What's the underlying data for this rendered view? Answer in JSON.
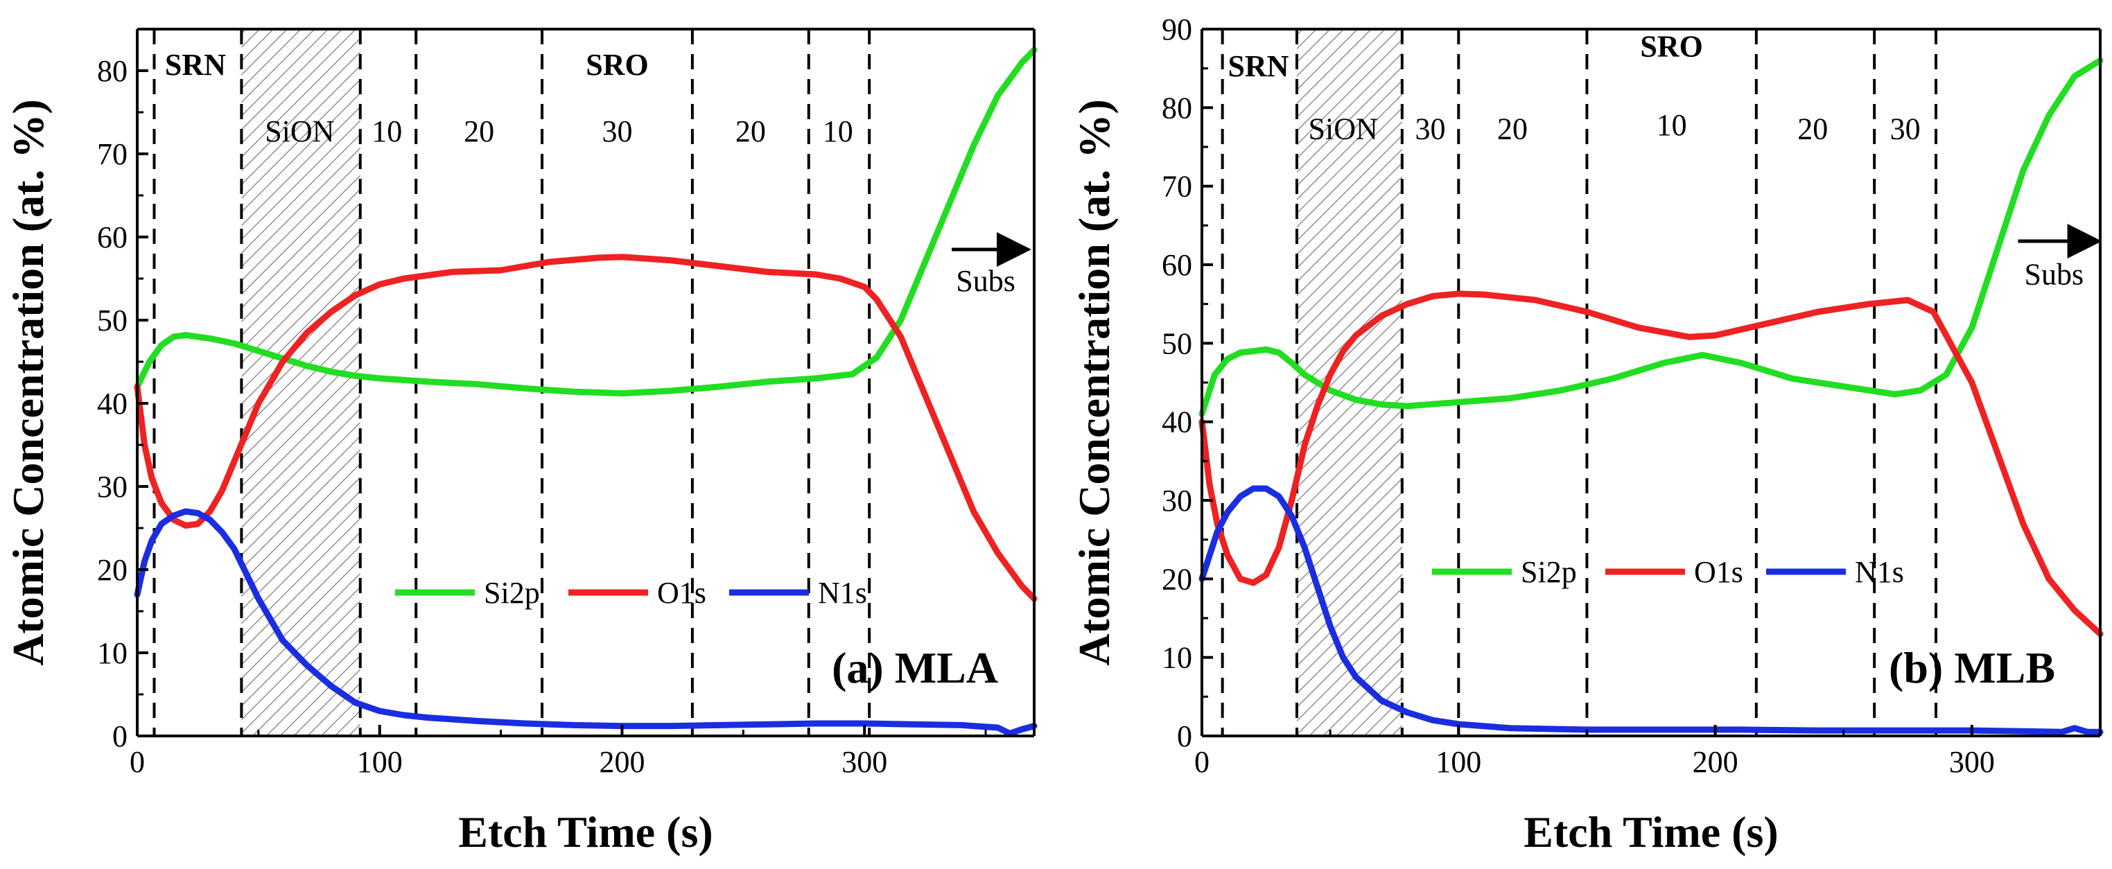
{
  "chart_data": [
    {
      "type": "line",
      "panel_label": "(a) MLA",
      "xlabel": "Etch Time (s)",
      "ylabel": "Atomic Concentration (at. %)",
      "xlim": [
        0,
        370
      ],
      "ylim": [
        0,
        85
      ],
      "xticks": [
        0,
        100,
        200,
        300
      ],
      "yticks": [
        0,
        10,
        20,
        30,
        40,
        50,
        60,
        70,
        80
      ],
      "hatched_region": [
        43,
        92
      ],
      "dividers": [
        7,
        43,
        92,
        115,
        167,
        229,
        277,
        302
      ],
      "region_labels": [
        {
          "text": "SRN",
          "x": 24,
          "y": 79.5,
          "bold": true
        },
        {
          "text": "SiON",
          "x": 67,
          "y": 71.5,
          "bold": false
        },
        {
          "text": "10",
          "x": 103,
          "y": 71.5,
          "bold": false
        },
        {
          "text": "20",
          "x": 141,
          "y": 71.5,
          "bold": false
        },
        {
          "text": "SRO",
          "x": 198,
          "y": 79.5,
          "bold": true
        },
        {
          "text": "30",
          "x": 198,
          "y": 71.5,
          "bold": false
        },
        {
          "text": "20",
          "x": 253,
          "y": 71.5,
          "bold": false
        },
        {
          "text": "10",
          "x": 289,
          "y": 71.5,
          "bold": false
        }
      ],
      "subs_label": {
        "text": "Subs",
        "x": 350,
        "y": 53.5
      },
      "subs_arrow": {
        "x1": 336,
        "x2": 366,
        "y": 58.5
      },
      "legend": [
        "Si2p",
        "O1s",
        "N1s"
      ],
      "series": [
        {
          "name": "Si2p",
          "color": "#22dd22",
          "x": [
            0,
            5,
            10,
            15,
            20,
            25,
            30,
            40,
            50,
            60,
            70,
            80,
            90,
            100,
            120,
            140,
            160,
            180,
            200,
            220,
            240,
            260,
            280,
            295,
            305,
            315,
            325,
            335,
            345,
            355,
            365,
            370
          ],
          "y": [
            42,
            45,
            47,
            48,
            48.2,
            48,
            47.8,
            47.2,
            46.3,
            45.4,
            44.5,
            43.8,
            43.3,
            43,
            42.6,
            42.3,
            41.8,
            41.4,
            41.2,
            41.5,
            42,
            42.6,
            43,
            43.5,
            45.5,
            50,
            57,
            64,
            71,
            77,
            81,
            82.5
          ]
        },
        {
          "name": "O1s",
          "color": "#ee2222",
          "x": [
            0,
            3,
            6,
            10,
            15,
            20,
            25,
            30,
            35,
            40,
            45,
            50,
            55,
            60,
            70,
            80,
            90,
            100,
            110,
            130,
            150,
            170,
            190,
            200,
            220,
            240,
            260,
            280,
            290,
            300,
            305,
            315,
            325,
            335,
            345,
            355,
            365,
            370
          ],
          "y": [
            42,
            35,
            31,
            28,
            26,
            25.3,
            25.5,
            27,
            29.5,
            33,
            36.5,
            40,
            42.5,
            45,
            48.5,
            51,
            53,
            54.3,
            55,
            55.8,
            56,
            57,
            57.5,
            57.6,
            57.2,
            56.5,
            55.8,
            55.5,
            55,
            54,
            52.5,
            48,
            41,
            34,
            27,
            22,
            18,
            16.5
          ]
        },
        {
          "name": "N1s",
          "color": "#1a2ee0",
          "x": [
            0,
            3,
            6,
            10,
            15,
            20,
            25,
            30,
            35,
            40,
            45,
            50,
            55,
            60,
            70,
            80,
            90,
            95,
            100,
            110,
            120,
            140,
            160,
            180,
            200,
            220,
            240,
            260,
            280,
            300,
            320,
            340,
            355,
            360,
            365,
            370
          ],
          "y": [
            17,
            21,
            23.5,
            25.5,
            26.5,
            27,
            26.8,
            26,
            24.5,
            22.5,
            19.5,
            16.5,
            14,
            11.5,
            8.5,
            6,
            4,
            3.5,
            3,
            2.5,
            2.2,
            1.8,
            1.5,
            1.3,
            1.2,
            1.2,
            1.3,
            1.4,
            1.5,
            1.5,
            1.4,
            1.3,
            1.0,
            0.3,
            0.8,
            1.2
          ]
        }
      ]
    },
    {
      "type": "line",
      "panel_label": "(b) MLB",
      "xlabel": "Etch Time (s)",
      "ylabel": "Atomic Concentration (at. %)",
      "xlim": [
        0,
        350
      ],
      "ylim": [
        0,
        90
      ],
      "xticks": [
        0,
        100,
        200,
        300
      ],
      "yticks": [
        0,
        10,
        20,
        30,
        40,
        50,
        60,
        70,
        80,
        90
      ],
      "hatched_region": [
        37,
        78
      ],
      "dividers": [
        8,
        37,
        78,
        100,
        150,
        216,
        262,
        286
      ],
      "region_labels": [
        {
          "text": "SRN",
          "x": 22,
          "y": 84,
          "bold": true
        },
        {
          "text": "SiON",
          "x": 55,
          "y": 76,
          "bold": false
        },
        {
          "text": "30",
          "x": 89,
          "y": 76,
          "bold": false
        },
        {
          "text": "20",
          "x": 121,
          "y": 76,
          "bold": false
        },
        {
          "text": "SRO",
          "x": 183,
          "y": 86.5,
          "bold": true
        },
        {
          "text": "10",
          "x": 183,
          "y": 76.5,
          "bold": false
        },
        {
          "text": "20",
          "x": 238,
          "y": 76,
          "bold": false
        },
        {
          "text": "30",
          "x": 274,
          "y": 76,
          "bold": false
        }
      ],
      "subs_label": {
        "text": "Subs",
        "x": 332,
        "y": 57.5
      },
      "subs_arrow": {
        "x1": 318,
        "x2": 348,
        "y": 63
      },
      "legend": [
        "Si2p",
        "O1s",
        "N1s"
      ],
      "series": [
        {
          "name": "Si2p",
          "color": "#22dd22",
          "x": [
            0,
            5,
            10,
            15,
            20,
            25,
            30,
            35,
            40,
            50,
            60,
            70,
            80,
            100,
            120,
            140,
            160,
            180,
            195,
            210,
            230,
            250,
            270,
            280,
            290,
            300,
            310,
            320,
            330,
            340,
            350
          ],
          "y": [
            41,
            46,
            48,
            48.8,
            49,
            49.2,
            48.8,
            47.5,
            46,
            44,
            42.8,
            42.2,
            42,
            42.5,
            43,
            44,
            45.5,
            47.5,
            48.5,
            47.5,
            45.5,
            44.5,
            43.5,
            44,
            46,
            52,
            62,
            72,
            79,
            84,
            86
          ]
        },
        {
          "name": "O1s",
          "color": "#ee2222",
          "x": [
            0,
            3,
            6,
            10,
            15,
            20,
            25,
            30,
            35,
            40,
            45,
            50,
            55,
            60,
            70,
            80,
            90,
            100,
            110,
            130,
            150,
            170,
            190,
            200,
            220,
            240,
            260,
            275,
            285,
            290,
            300,
            310,
            320,
            330,
            340,
            350
          ],
          "y": [
            40,
            32,
            27,
            23,
            20,
            19.5,
            20.5,
            24,
            30,
            37,
            42,
            46,
            49,
            51,
            53.5,
            55,
            56,
            56.3,
            56.2,
            55.5,
            54,
            52,
            50.8,
            51,
            52.5,
            54,
            55,
            55.5,
            54,
            51,
            45,
            36,
            27,
            20,
            16,
            13
          ]
        },
        {
          "name": "N1s",
          "color": "#1a2ee0",
          "x": [
            0,
            3,
            6,
            10,
            15,
            20,
            25,
            30,
            35,
            40,
            45,
            50,
            55,
            60,
            70,
            80,
            90,
            100,
            120,
            150,
            180,
            210,
            240,
            270,
            300,
            320,
            335,
            340,
            345,
            350
          ],
          "y": [
            20,
            23,
            26,
            28.5,
            30.5,
            31.5,
            31.5,
            30.5,
            28,
            24,
            19,
            14,
            10,
            7.5,
            4.5,
            3,
            2,
            1.5,
            1,
            0.8,
            0.8,
            0.8,
            0.7,
            0.7,
            0.7,
            0.6,
            0.5,
            1,
            0.5,
            0.5
          ]
        }
      ]
    }
  ]
}
